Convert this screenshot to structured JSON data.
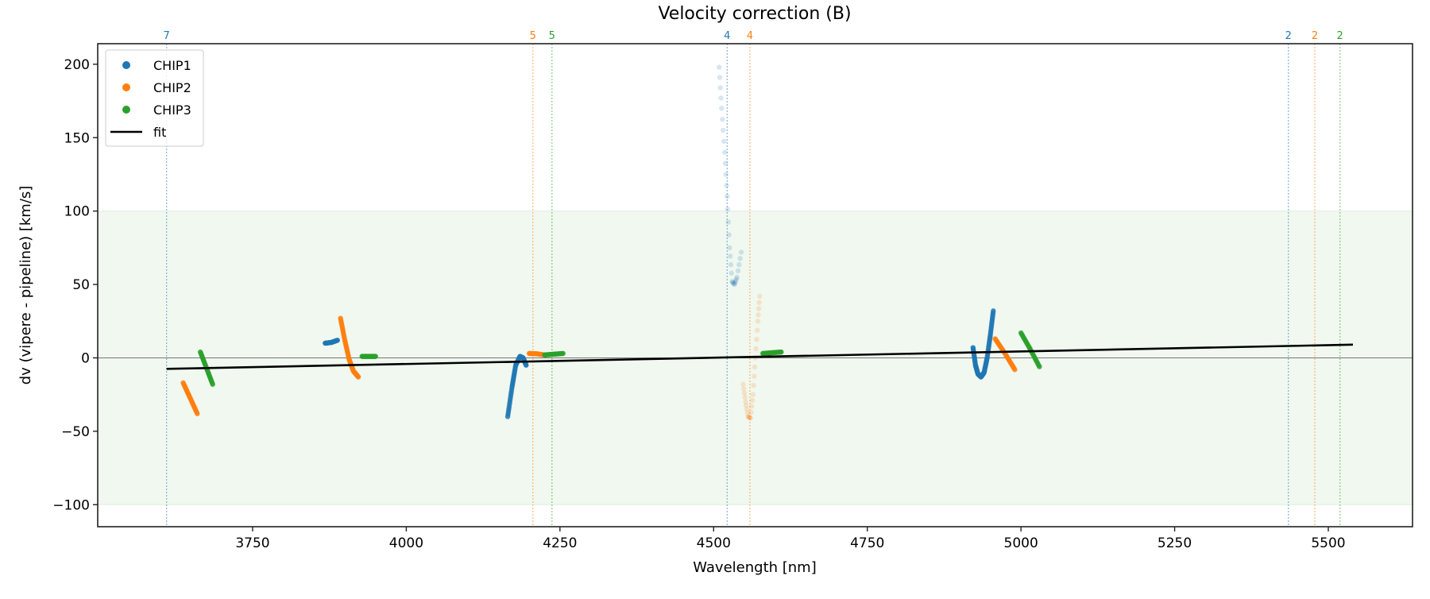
{
  "chart_data": {
    "type": "scatter",
    "title": "Velocity correction (B)",
    "xlabel": "Wavelength [nm]",
    "ylabel": "dv (vipere - pipeline) [km/s]",
    "xlim": [
      3498,
      5637
    ],
    "ylim": [
      -115,
      214
    ],
    "xticks": [
      3750,
      4000,
      4250,
      4500,
      4750,
      5000,
      5250,
      5500
    ],
    "xtick_labels": [
      "3750",
      "4000",
      "4250",
      "4500",
      "4750",
      "5000",
      "5250",
      "5500"
    ],
    "yticks": [
      -100,
      -50,
      0,
      50,
      100,
      150,
      200
    ],
    "ytick_labels": [
      "−100",
      "−50",
      "0",
      "50",
      "100",
      "150",
      "200"
    ],
    "grid": false,
    "shaded_band": {
      "y": [
        -100,
        100
      ],
      "color": "#2ca02c"
    },
    "zero_line": 0,
    "legend": {
      "position": "top-left",
      "entries": [
        "CHIP1",
        "CHIP2",
        "CHIP3",
        "fit"
      ]
    },
    "colors": {
      "CHIP1": "#1f77b4",
      "CHIP2": "#ff7f0e",
      "CHIP3": "#2ca02c",
      "fit": "#000000"
    },
    "fit": {
      "x": [
        3610,
        5540
      ],
      "y": [
        -7.5,
        9
      ]
    },
    "markers": [
      {
        "x": 3610,
        "chip": "CHIP1",
        "label": "7"
      },
      {
        "x": 4206,
        "chip": "CHIP2",
        "label": "5"
      },
      {
        "x": 4237,
        "chip": "CHIP3",
        "label": "5"
      },
      {
        "x": 4522,
        "chip": "CHIP1",
        "label": "4"
      },
      {
        "x": 4559,
        "chip": "CHIP2",
        "label": "4"
      },
      {
        "x": 5435,
        "chip": "CHIP1",
        "label": "2"
      },
      {
        "x": 5478,
        "chip": "CHIP2",
        "label": "2"
      },
      {
        "x": 5519,
        "chip": "CHIP3",
        "label": "2"
      }
    ],
    "series": [
      {
        "name": "CHIP1",
        "segments": [
          {
            "x": [
              3868,
              3878,
              3888
            ],
            "y": [
              10,
              10.5,
              12
            ]
          },
          {
            "x": [
              4165,
              4172,
              4178,
              4185,
              4190,
              4195
            ],
            "y": [
              -40,
              -20,
              -5,
              1,
              0,
              -5
            ]
          },
          {
            "faint": true,
            "x": [
              4509,
              4513,
              4518,
              4522,
              4526,
              4530,
              4534,
              4538,
              4545
            ],
            "y": [
              198,
              170,
              140,
              110,
              75,
              52,
              50,
              55,
              72
            ]
          },
          {
            "x": [
              4922,
              4926,
              4930,
              4935,
              4940,
              4945,
              4950,
              4955
            ],
            "y": [
              7,
              -5,
              -11,
              -13,
              -10,
              0,
              15,
              32
            ]
          }
        ]
      },
      {
        "name": "CHIP2",
        "segments": [
          {
            "x": [
              3637,
              3648,
              3660
            ],
            "y": [
              -17,
              -27,
              -38
            ]
          },
          {
            "x": [
              3893,
              3900,
              3907,
              3914,
              3922
            ],
            "y": [
              27,
              12,
              -1,
              -9,
              -13
            ]
          },
          {
            "x": [
              4200,
              4212,
              4225
            ],
            "y": [
              3,
              2.8,
              2
            ]
          },
          {
            "faint": true,
            "x": [
              4548,
              4552,
              4556,
              4560,
              4564,
              4568,
              4572,
              4575
            ],
            "y": [
              -18,
              -30,
              -40,
              -41,
              -25,
              0,
              25,
              42
            ]
          },
          {
            "x": [
              4958,
              4974,
              4990
            ],
            "y": [
              13,
              3,
              -8
            ]
          }
        ]
      },
      {
        "name": "CHIP3",
        "segments": [
          {
            "x": [
              3665,
              3675,
              3685
            ],
            "y": [
              4,
              -7,
              -18
            ]
          },
          {
            "x": [
              3928,
              3939,
              3950
            ],
            "y": [
              1,
              1,
              1
            ]
          },
          {
            "x": [
              4225,
              4240,
              4255
            ],
            "y": [
              2,
              2.5,
              3
            ]
          },
          {
            "x": [
              4580,
              4595,
              4610
            ],
            "y": [
              3,
              3.5,
              4
            ]
          },
          {
            "x": [
              5000,
              5015,
              5030
            ],
            "y": [
              17,
              6,
              -6
            ]
          }
        ]
      }
    ]
  }
}
